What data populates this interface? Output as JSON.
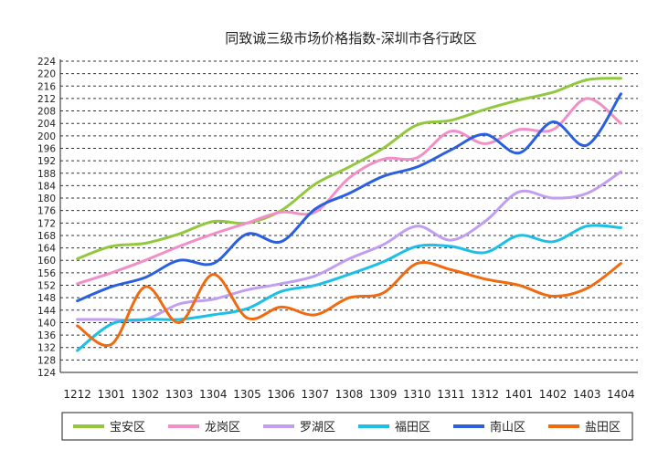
{
  "chart_data": {
    "type": "line",
    "title": "同致诚三级市场价格指数-深圳市各行政区",
    "xlabel": "",
    "ylabel": "",
    "ylim": [
      124,
      224
    ],
    "ytick_step": 4,
    "grid": "horizontal dashed",
    "legend_position": "bottom",
    "categories": [
      "1212",
      "1301",
      "1302",
      "1303",
      "1304",
      "1305",
      "1306",
      "1307",
      "1308",
      "1309",
      "1310",
      "1311",
      "1312",
      "1401",
      "1402",
      "1403",
      "1404"
    ],
    "series": [
      {
        "name": "宝安区",
        "color": "#92c83e",
        "values": [
          160.5,
          164.5,
          165.5,
          168.5,
          172.5,
          172,
          176,
          184.5,
          190,
          196,
          203.5,
          205,
          208.5,
          211.5,
          214,
          218,
          218.5
        ]
      },
      {
        "name": "龙岗区",
        "color": "#f28fc6",
        "values": [
          152.5,
          156,
          160,
          164.5,
          168.5,
          172,
          175.5,
          175.5,
          186.5,
          192.5,
          193,
          201.5,
          197.5,
          202,
          202,
          212,
          204
        ]
      },
      {
        "name": "罗湖区",
        "color": "#c29ef0",
        "values": [
          141,
          141,
          141,
          146,
          147.5,
          150.5,
          152.5,
          155,
          160.5,
          165,
          171,
          166.5,
          172.5,
          182,
          180,
          181.5,
          188.5
        ]
      },
      {
        "name": "福田区",
        "color": "#1cbfe6",
        "values": [
          131,
          139.5,
          141,
          141,
          142.5,
          144.5,
          150,
          152,
          155.5,
          159.5,
          164.5,
          164.5,
          162.5,
          168,
          166,
          171,
          170.5
        ]
      },
      {
        "name": "南山区",
        "color": "#2a5fe0",
        "values": [
          147,
          151.5,
          154.5,
          160,
          159,
          168.5,
          166,
          176.5,
          181.5,
          187,
          190,
          195.5,
          200.5,
          194.5,
          204.5,
          197,
          213.5
        ]
      },
      {
        "name": "盐田区",
        "color": "#f06a10",
        "values": [
          139,
          133,
          151.5,
          140,
          155.5,
          141.5,
          145,
          142.5,
          148,
          149.5,
          159,
          157,
          154,
          152,
          148.5,
          151,
          159
        ]
      }
    ]
  }
}
